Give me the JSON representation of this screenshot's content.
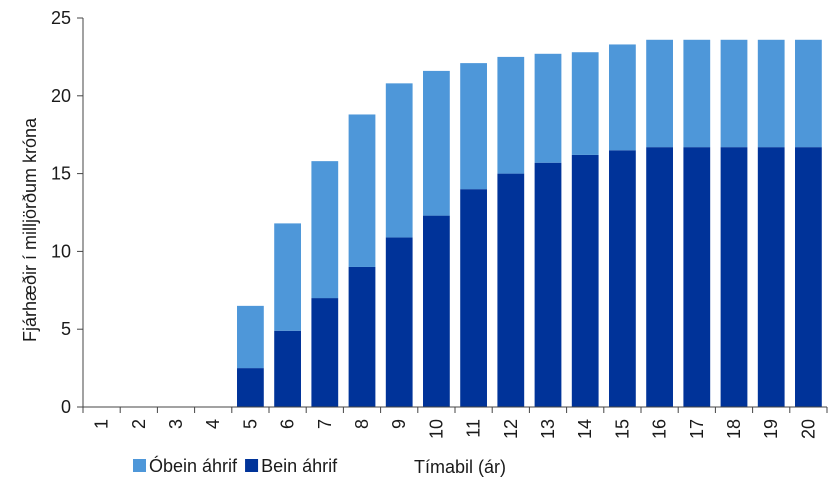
{
  "chart_data": {
    "type": "bar",
    "stacked": true,
    "categories": [
      "1",
      "2",
      "3",
      "4",
      "5",
      "6",
      "7",
      "8",
      "9",
      "10",
      "11",
      "12",
      "13",
      "14",
      "15",
      "16",
      "17",
      "18",
      "19",
      "20"
    ],
    "series": [
      {
        "name": "Bein áhrif",
        "color": "#003399",
        "values": [
          0,
          0,
          0,
          0,
          2.5,
          4.9,
          7.0,
          9.0,
          10.9,
          12.3,
          14.0,
          15.0,
          15.7,
          16.2,
          16.5,
          16.7,
          16.7,
          16.7,
          16.7,
          16.7
        ]
      },
      {
        "name": "Óbein áhrif",
        "color": "#4e97d9",
        "values": [
          0,
          0,
          0,
          0,
          4.0,
          6.9,
          8.8,
          9.8,
          9.9,
          9.3,
          8.1,
          7.5,
          7.0,
          6.6,
          6.8,
          6.9,
          6.9,
          6.9,
          6.9,
          6.9
        ]
      }
    ],
    "xlabel": "Tímabil (ár)",
    "ylabel": "Fjárhæðir í milljörðum króna",
    "ylim": [
      0,
      25
    ],
    "yticks": [
      0,
      5,
      10,
      15,
      20,
      25
    ],
    "grid": false,
    "legend_placement": "bottom-left",
    "legend_order": [
      "Óbein áhrif",
      "Bein áhrif"
    ]
  }
}
